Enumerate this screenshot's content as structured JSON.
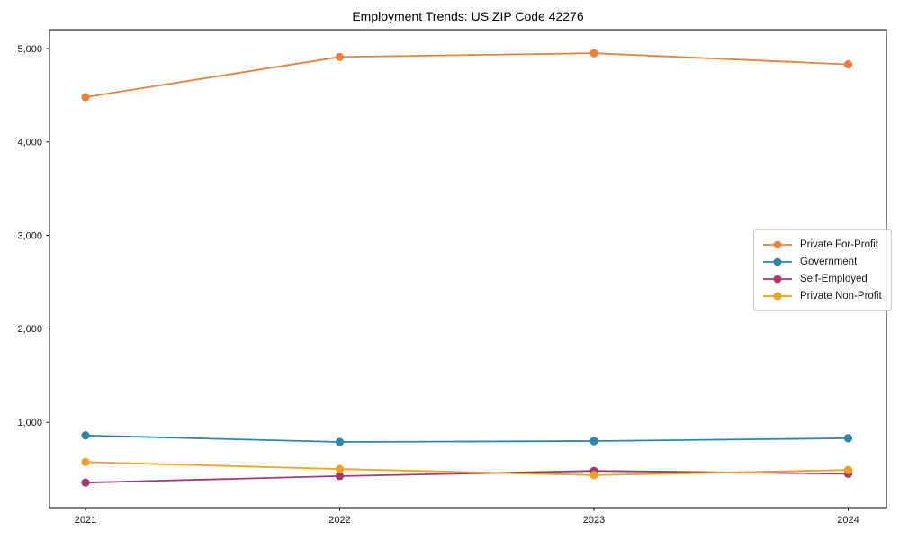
{
  "chart_data": {
    "type": "line",
    "title": "Employment Trends: US ZIP Code 42276",
    "categories": [
      "2021",
      "2022",
      "2023",
      "2024"
    ],
    "series": [
      {
        "name": "Private For-Profit",
        "color": "#E8813D",
        "values": [
          4480,
          4910,
          4950,
          4830
        ]
      },
      {
        "name": "Government",
        "color": "#2E86AB",
        "values": [
          860,
          790,
          800,
          830
        ]
      },
      {
        "name": "Self-Employed",
        "color": "#A23B72",
        "values": [
          355,
          425,
          480,
          450
        ]
      },
      {
        "name": "Private Non-Profit",
        "color": "#EFA120",
        "values": [
          575,
          500,
          435,
          490
        ]
      }
    ],
    "xlabel": "",
    "ylabel": "",
    "y_ticks": [
      1000,
      2000,
      3000,
      4000,
      5000
    ],
    "y_tick_labels": [
      "1,000",
      "2,000",
      "3,000",
      "4,000",
      "5,000"
    ],
    "ylim": [
      87,
      5202
    ],
    "grid": false,
    "legend_position": "right-middle",
    "marker": "circle",
    "axis_color": "#000000",
    "tick_label_color": "#1a1a1a"
  }
}
